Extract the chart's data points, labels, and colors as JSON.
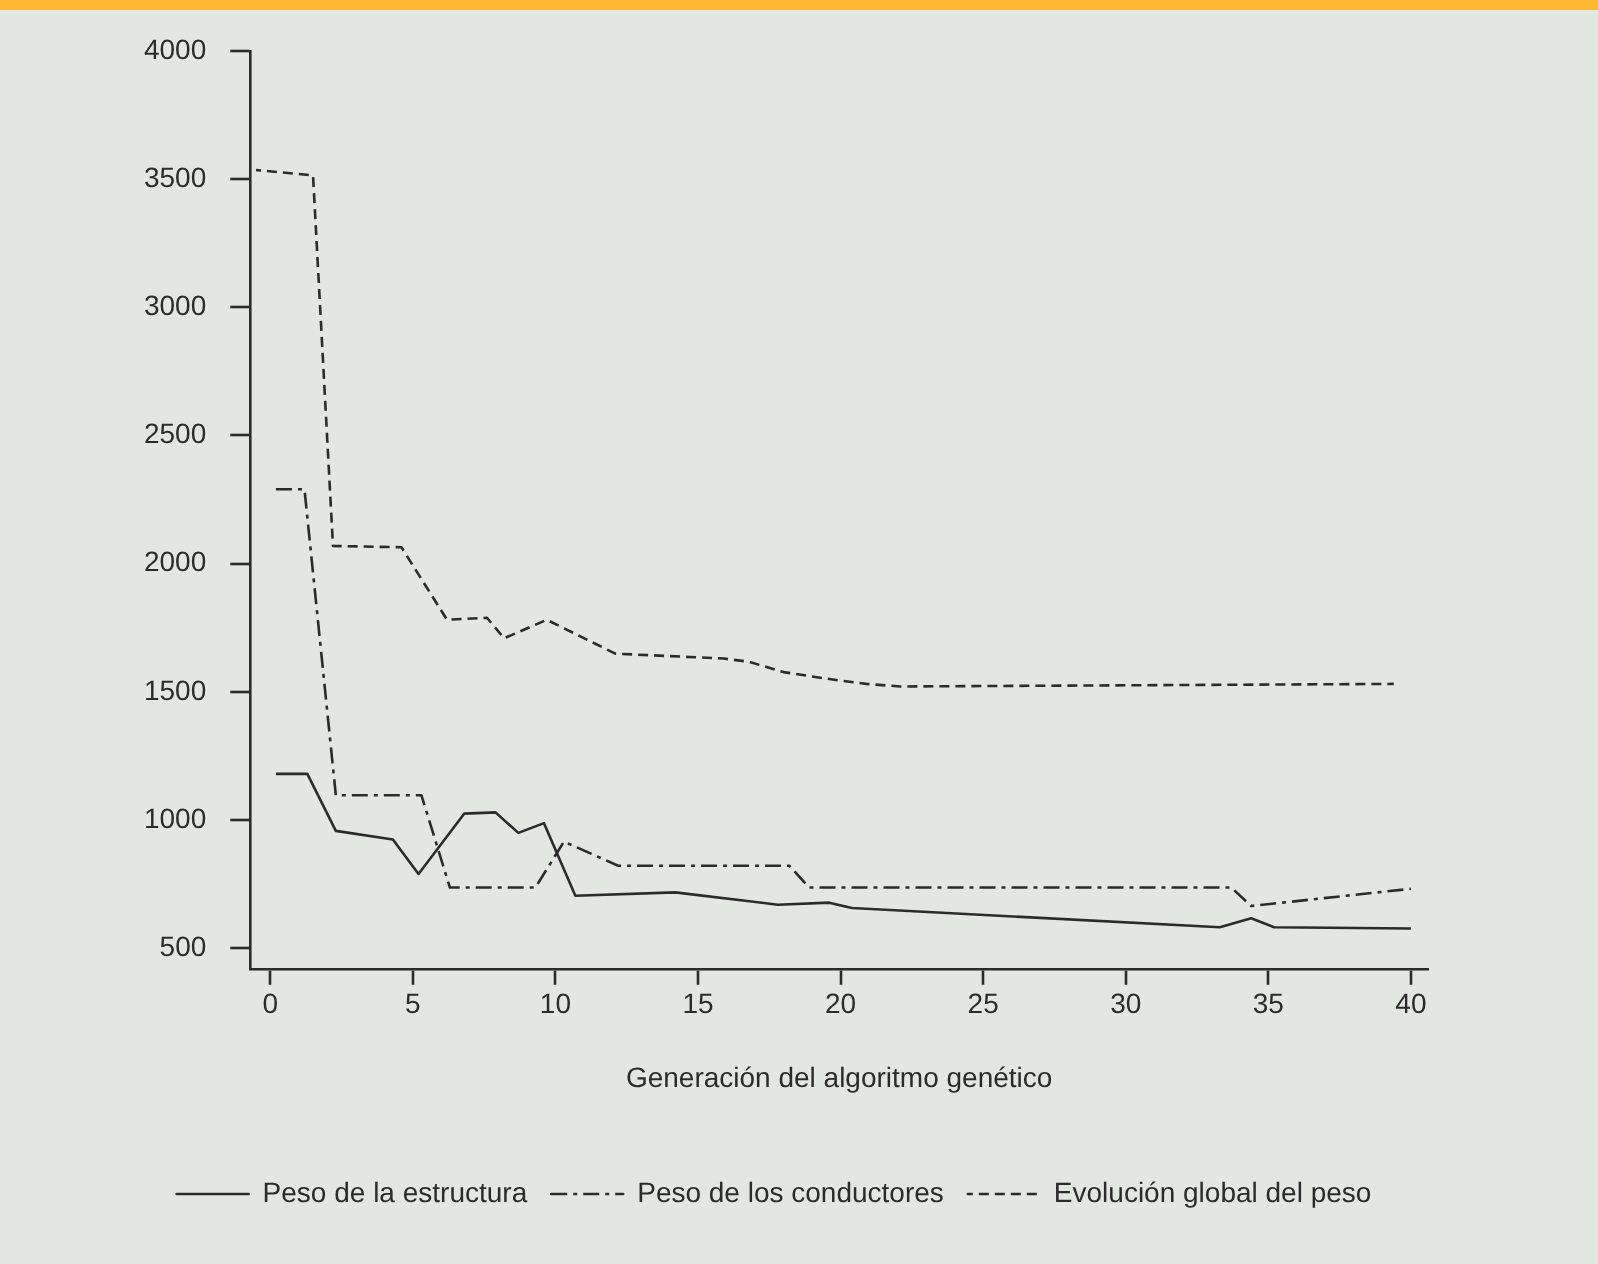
{
  "chart_data": {
    "type": "line",
    "xlabel": "Generación del algoritmo genético",
    "xlim": [
      -0.7,
      40.6
    ],
    "xticks": [
      0,
      5,
      10,
      15,
      20,
      25,
      30,
      35,
      40
    ],
    "ylim": [
      420,
      4000
    ],
    "yticks": [
      500,
      1000,
      1500,
      2000,
      2500,
      3000,
      3500,
      4000
    ],
    "grid": false,
    "legend": "bottom",
    "marker": "none",
    "series": [
      {
        "name": "Peso de la estructura",
        "color": "#2b2b2b",
        "line_style": "solid",
        "x": [
          0.2,
          1.3,
          2.3,
          4.3,
          5.2,
          6.8,
          7.9,
          8.7,
          9.6,
          10.7,
          14.2,
          17.8,
          19.6,
          20.4,
          33.3,
          34.4,
          35.2,
          40.0
        ],
        "values": [
          1180,
          1180,
          958,
          924,
          790,
          1025,
          1030,
          950,
          988,
          705,
          718,
          670,
          678,
          657,
          582,
          617,
          582,
          577
        ]
      },
      {
        "name": "Peso de los conductores",
        "color": "#2b2b2b",
        "line_style": "dashdot",
        "x": [
          0.2,
          1.2,
          2.3,
          5.3,
          6.3,
          9.3,
          10.3,
          12.2,
          18.2,
          18.9,
          33.7,
          34.4,
          40.0
        ],
        "values": [
          2290,
          2290,
          1097,
          1097,
          737,
          737,
          916,
          822,
          822,
          737,
          737,
          665,
          732
        ]
      },
      {
        "name": "Evolución global del peso",
        "color": "#2b2b2b",
        "line_style": "dashed",
        "x": [
          -0.5,
          1.5,
          2.2,
          4.6,
          6.2,
          7.6,
          8.2,
          9.7,
          12.1,
          15.9,
          16.8,
          18.0,
          19.9,
          20.9,
          22.1,
          39.4
        ],
        "values": [
          3535,
          3514,
          2069,
          2064,
          1781,
          1789,
          1709,
          1781,
          1649,
          1630,
          1617,
          1577,
          1545,
          1531,
          1521,
          1531
        ]
      }
    ]
  }
}
